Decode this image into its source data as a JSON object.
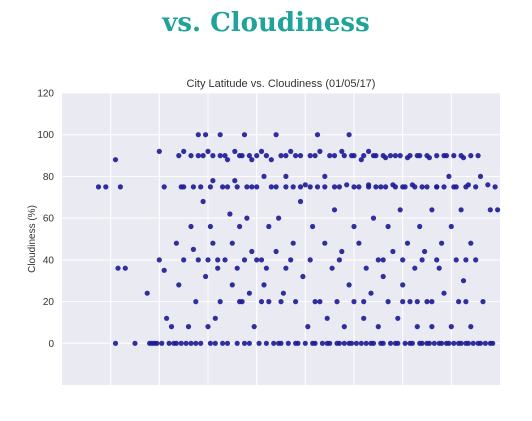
{
  "heading": "vs. Cloudiness",
  "chart_data": {
    "type": "scatter",
    "title": "City Latitude vs. Cloudiness (01/05/17)",
    "xlabel": "",
    "ylabel": "Cloudiness (%)",
    "xlim": [
      -80,
      100
    ],
    "ylim": [
      -20,
      120
    ],
    "yticks": [
      0,
      20,
      40,
      60,
      80,
      100,
      120
    ],
    "xgrid": [
      -60,
      -40,
      -20,
      0,
      20,
      40,
      60,
      80
    ],
    "grid": true,
    "background": "#eaeaf2",
    "point_color": "#1c1a96",
    "points": [
      [
        -65,
        75
      ],
      [
        -62,
        75
      ],
      [
        -58,
        88
      ],
      [
        -57,
        36
      ],
      [
        -56,
        75
      ],
      [
        -54,
        36
      ],
      [
        -50,
        0
      ],
      [
        -58,
        0
      ],
      [
        -45,
        24
      ],
      [
        -42,
        0
      ],
      [
        -40,
        92
      ],
      [
        -40,
        40
      ],
      [
        -38,
        35
      ],
      [
        -38,
        75
      ],
      [
        -37,
        12
      ],
      [
        -35,
        8
      ],
      [
        -34,
        0
      ],
      [
        -33,
        48
      ],
      [
        -32,
        28
      ],
      [
        -31,
        75
      ],
      [
        -30,
        92
      ],
      [
        -30,
        40
      ],
      [
        -29,
        0
      ],
      [
        -28,
        8
      ],
      [
        -27,
        56
      ],
      [
        -26,
        45
      ],
      [
        -25,
        20
      ],
      [
        -25,
        0
      ],
      [
        -24,
        40
      ],
      [
        -23,
        75
      ],
      [
        -22,
        90
      ],
      [
        -22,
        68
      ],
      [
        -21,
        32
      ],
      [
        -20,
        92
      ],
      [
        -20,
        8
      ],
      [
        -19,
        56
      ],
      [
        -18,
        78
      ],
      [
        -18,
        48
      ],
      [
        -17,
        12
      ],
      [
        -17,
        0
      ],
      [
        -16,
        36
      ],
      [
        -15,
        90
      ],
      [
        -15,
        20
      ],
      [
        -14,
        75
      ],
      [
        -13,
        40
      ],
      [
        -12,
        88
      ],
      [
        -12,
        0
      ],
      [
        -11,
        62
      ],
      [
        -10,
        48
      ],
      [
        -10,
        28
      ],
      [
        -9,
        92
      ],
      [
        -9,
        78
      ],
      [
        -8,
        36
      ],
      [
        -7,
        20
      ],
      [
        -7,
        56
      ],
      [
        -6,
        90
      ],
      [
        -5,
        40
      ],
      [
        -5,
        0
      ],
      [
        -4,
        75
      ],
      [
        -4,
        60
      ],
      [
        -3,
        24
      ],
      [
        -2,
        88
      ],
      [
        -2,
        44
      ],
      [
        -1,
        8
      ],
      [
        0,
        75
      ],
      [
        0,
        90
      ],
      [
        0,
        40
      ],
      [
        1,
        0
      ],
      [
        2,
        92
      ],
      [
        3,
        80
      ],
      [
        3,
        28
      ],
      [
        4,
        36
      ],
      [
        5,
        20
      ],
      [
        5,
        56
      ],
      [
        6,
        88
      ],
      [
        7,
        0
      ],
      [
        8,
        75
      ],
      [
        8,
        44
      ],
      [
        9,
        60
      ],
      [
        10,
        90
      ],
      [
        10,
        0
      ],
      [
        11,
        24
      ],
      [
        12,
        36
      ],
      [
        12,
        80
      ],
      [
        13,
        0
      ],
      [
        14,
        92
      ],
      [
        15,
        75
      ],
      [
        15,
        48
      ],
      [
        16,
        20
      ],
      [
        17,
        0
      ],
      [
        18,
        90
      ],
      [
        18,
        68
      ],
      [
        19,
        32
      ],
      [
        20,
        0
      ],
      [
        20,
        76
      ],
      [
        21,
        8
      ],
      [
        22,
        90
      ],
      [
        22,
        40
      ],
      [
        23,
        56
      ],
      [
        24,
        0
      ],
      [
        25,
        75
      ],
      [
        26,
        92
      ],
      [
        26,
        20
      ],
      [
        27,
        0
      ],
      [
        28,
        48
      ],
      [
        28,
        80
      ],
      [
        29,
        12
      ],
      [
        30,
        90
      ],
      [
        30,
        0
      ],
      [
        31,
        36
      ],
      [
        32,
        75
      ],
      [
        32,
        64
      ],
      [
        33,
        20
      ],
      [
        34,
        0
      ],
      [
        35,
        92
      ],
      [
        35,
        44
      ],
      [
        36,
        8
      ],
      [
        37,
        76
      ],
      [
        38,
        0
      ],
      [
        38,
        28
      ],
      [
        39,
        90
      ],
      [
        40,
        56
      ],
      [
        40,
        20
      ],
      [
        41,
        0
      ],
      [
        42,
        75
      ],
      [
        42,
        48
      ],
      [
        43,
        88
      ],
      [
        44,
        12
      ],
      [
        45,
        0
      ],
      [
        45,
        36
      ],
      [
        46,
        92
      ],
      [
        46,
        76
      ],
      [
        47,
        24
      ],
      [
        48,
        0
      ],
      [
        48,
        60
      ],
      [
        49,
        90
      ],
      [
        50,
        40
      ],
      [
        50,
        8
      ],
      [
        51,
        75
      ],
      [
        52,
        0
      ],
      [
        52,
        32
      ],
      [
        53,
        89
      ],
      [
        54,
        20
      ],
      [
        54,
        56
      ],
      [
        55,
        0
      ],
      [
        56,
        76
      ],
      [
        56,
        44
      ],
      [
        57,
        90
      ],
      [
        58,
        12
      ],
      [
        58,
        0
      ],
      [
        59,
        64
      ],
      [
        60,
        75
      ],
      [
        60,
        28
      ],
      [
        61,
        0
      ],
      [
        62,
        89
      ],
      [
        62,
        48
      ],
      [
        63,
        20
      ],
      [
        64,
        0
      ],
      [
        64,
        76
      ],
      [
        65,
        36
      ],
      [
        66,
        90
      ],
      [
        66,
        8
      ],
      [
        67,
        56
      ],
      [
        68,
        0
      ],
      [
        68,
        75
      ],
      [
        69,
        44
      ],
      [
        70,
        20
      ],
      [
        70,
        0
      ],
      [
        71,
        89
      ],
      [
        72,
        64
      ],
      [
        72,
        8
      ],
      [
        73,
        0
      ],
      [
        74,
        75
      ],
      [
        75,
        36
      ],
      [
        76,
        48
      ],
      [
        76,
        0
      ],
      [
        77,
        24
      ],
      [
        78,
        90
      ],
      [
        78,
        0
      ],
      [
        79,
        80
      ],
      [
        80,
        56
      ],
      [
        80,
        8
      ],
      [
        81,
        0
      ],
      [
        82,
        75
      ],
      [
        82,
        40
      ],
      [
        83,
        20
      ],
      [
        84,
        0
      ],
      [
        84,
        64
      ],
      [
        85,
        89
      ],
      [
        85,
        30
      ],
      [
        86,
        0
      ],
      [
        87,
        76
      ],
      [
        88,
        48
      ],
      [
        88,
        8
      ],
      [
        89,
        0
      ],
      [
        90,
        75
      ],
      [
        90,
        40
      ],
      [
        91,
        0
      ],
      [
        92,
        80
      ],
      [
        93,
        20
      ],
      [
        94,
        0
      ],
      [
        95,
        76
      ],
      [
        96,
        64
      ],
      [
        96,
        0
      ],
      [
        98,
        75
      ],
      [
        99,
        64
      ],
      [
        -44,
        0
      ],
      [
        -43,
        0
      ],
      [
        -41,
        0
      ],
      [
        -39,
        0
      ],
      [
        -36,
        0
      ],
      [
        -33,
        0
      ],
      [
        -31,
        0
      ],
      [
        -27,
        0
      ],
      [
        -23,
        0
      ],
      [
        -19,
        0
      ],
      [
        -14,
        0
      ],
      [
        -8,
        0
      ],
      [
        -3,
        0
      ],
      [
        4,
        0
      ],
      [
        9,
        0
      ],
      [
        16,
        0
      ],
      [
        23,
        0
      ],
      [
        29,
        0
      ],
      [
        33,
        0
      ],
      [
        36,
        0
      ],
      [
        39,
        0
      ],
      [
        43,
        0
      ],
      [
        47,
        0
      ],
      [
        51,
        0
      ],
      [
        57,
        0
      ],
      [
        63,
        0
      ],
      [
        67,
        0
      ],
      [
        71,
        0
      ],
      [
        75,
        0
      ],
      [
        79,
        0
      ],
      [
        83,
        0
      ],
      [
        87,
        0
      ],
      [
        92,
        0
      ],
      [
        97,
        0
      ],
      [
        -24,
        100
      ],
      [
        -21,
        100
      ],
      [
        -15,
        100
      ],
      [
        -5,
        100
      ],
      [
        8,
        100
      ],
      [
        25,
        100
      ],
      [
        38,
        100
      ],
      [
        -30,
        75
      ],
      [
        -26,
        75
      ],
      [
        -19,
        75
      ],
      [
        -12,
        75
      ],
      [
        -8,
        75
      ],
      [
        -2,
        75
      ],
      [
        6,
        75
      ],
      [
        12,
        75
      ],
      [
        18,
        75
      ],
      [
        22,
        75
      ],
      [
        28,
        75
      ],
      [
        34,
        75
      ],
      [
        40,
        75
      ],
      [
        46,
        75
      ],
      [
        49,
        75
      ],
      [
        53,
        75
      ],
      [
        57,
        75
      ],
      [
        61,
        75
      ],
      [
        65,
        75
      ],
      [
        70,
        75
      ],
      [
        74,
        75
      ],
      [
        77,
        75
      ],
      [
        81,
        75
      ],
      [
        86,
        75
      ],
      [
        -32,
        90
      ],
      [
        -27,
        90
      ],
      [
        -24,
        90
      ],
      [
        -18,
        90
      ],
      [
        -13,
        90
      ],
      [
        -7,
        90
      ],
      [
        -3,
        90
      ],
      [
        4,
        90
      ],
      [
        12,
        90
      ],
      [
        16,
        90
      ],
      [
        24,
        90
      ],
      [
        32,
        90
      ],
      [
        36,
        90
      ],
      [
        40,
        90
      ],
      [
        44,
        90
      ],
      [
        48,
        90
      ],
      [
        52,
        90
      ],
      [
        55,
        90
      ],
      [
        59,
        90
      ],
      [
        63,
        90
      ],
      [
        67,
        90
      ],
      [
        70,
        90
      ],
      [
        74,
        90
      ],
      [
        77,
        90
      ],
      [
        81,
        90
      ],
      [
        84,
        90
      ],
      [
        88,
        90
      ],
      [
        91,
        90
      ],
      [
        -6,
        20
      ],
      [
        2,
        20
      ],
      [
        10,
        20
      ],
      [
        24,
        20
      ],
      [
        44,
        20
      ],
      [
        60,
        20
      ],
      [
        66,
        20
      ],
      [
        72,
        20
      ],
      [
        86,
        20
      ],
      [
        -20,
        40
      ],
      [
        -16,
        40
      ],
      [
        2,
        40
      ],
      [
        14,
        40
      ],
      [
        34,
        40
      ],
      [
        52,
        40
      ],
      [
        60,
        40
      ],
      [
        68,
        40
      ],
      [
        74,
        40
      ],
      [
        86,
        40
      ]
    ]
  }
}
